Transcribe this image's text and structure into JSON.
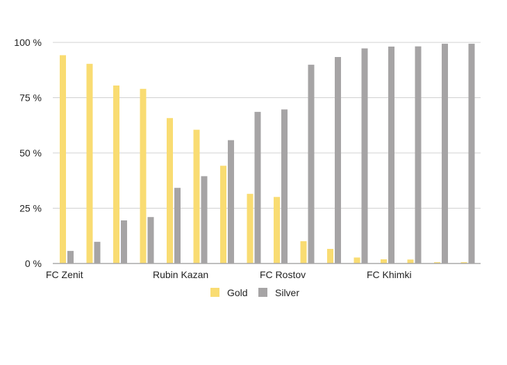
{
  "chart_data": {
    "type": "bar",
    "title": "",
    "xlabel": "",
    "ylabel": "",
    "ylim": [
      0,
      100
    ],
    "yticks": [
      0,
      25,
      50,
      75,
      100
    ],
    "ytick_labels": [
      "0 %",
      "25 %",
      "50 %",
      "75 %",
      "100 %"
    ],
    "grid": true,
    "legend": "bottom-center",
    "category_labels": [
      {
        "index": 0,
        "label": "FC Zenit"
      },
      {
        "index": 4,
        "label": "Rubin Kazan"
      },
      {
        "index": 8,
        "label": "FC Rostov"
      },
      {
        "index": 12,
        "label": "FC Khimki"
      }
    ],
    "num_categories": 16,
    "series": [
      {
        "name": "Gold",
        "color": "#f9dc72",
        "values": [
          94.2,
          90.3,
          80.5,
          79.0,
          65.8,
          60.5,
          44.2,
          31.5,
          30.1,
          10.1,
          6.6,
          2.7,
          1.9,
          1.8,
          0.6,
          0.6
        ]
      },
      {
        "name": "Silver",
        "color": "#a6a4a5",
        "values": [
          5.7,
          9.8,
          19.5,
          21.0,
          34.2,
          39.5,
          55.8,
          68.6,
          69.7,
          89.9,
          93.4,
          97.3,
          98.1,
          98.2,
          99.4,
          99.4
        ]
      }
    ]
  }
}
